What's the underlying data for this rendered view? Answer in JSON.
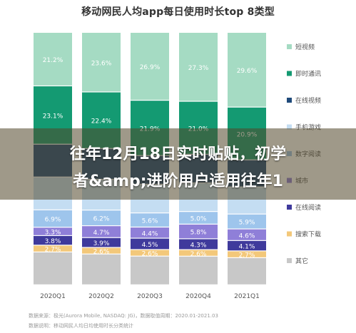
{
  "chart_data": {
    "type": "bar",
    "stacked": true,
    "title": "移动网民人均app每日使用时长top 8类型",
    "categories": [
      "2020Q1",
      "2020Q2",
      "2020Q3",
      "2020Q4",
      "2021Q1"
    ],
    "ylim": [
      0,
      100
    ],
    "legend_position": "right",
    "series": [
      {
        "name": "其它",
        "color": "#c8c8c8",
        "values": [
          null,
          null,
          null,
          null,
          null
        ]
      },
      {
        "name": "搜索下载",
        "color": "#f3c87a",
        "values": [
          2.7,
          2.6,
          2.6,
          2.6,
          2.7
        ]
      },
      {
        "name": "在线阅读",
        "color": "#3f3a9c",
        "values": [
          3.8,
          3.9,
          4.5,
          4.3,
          4.1
        ]
      },
      {
        "name": "",
        "color": "#8f7fd8",
        "values": [
          3.3,
          4.7,
          4.4,
          5.8,
          4.6
        ]
      },
      {
        "name": "",
        "color": "#9ec5ec",
        "values": [
          6.9,
          6.2,
          5.6,
          5.0,
          5.9
        ]
      },
      {
        "name": "",
        "color": "#c4ddf2",
        "values": [
          null,
          null,
          null,
          null,
          null
        ]
      },
      {
        "name": "在线视频",
        "color": "#1f4a7a",
        "values": [
          null,
          null,
          null,
          null,
          null
        ]
      },
      {
        "name": "即时通讯",
        "color": "#149a72",
        "values": [
          23.1,
          22.4,
          21.9,
          21.0,
          20.9
        ]
      },
      {
        "name": "短视频",
        "color": "#a5dbc3",
        "values": [
          21.2,
          23.6,
          26.9,
          27.3,
          29.6
        ]
      }
    ],
    "legend_extra": [
      "手机游戏",
      "数字阅读",
      "城市"
    ]
  },
  "overlay": {
    "line1": "往年12月18日实时贴贴，初学",
    "line2": "者&amp;进阶用户适用往年1"
  },
  "source": {
    "line1": "数据来源：极光(Aurora Mobile, NASDAQ: JG)，数据取值周期：2020.01-2021.03",
    "line2": "数据说明：移动网民人均日均使用时长分类统计"
  }
}
